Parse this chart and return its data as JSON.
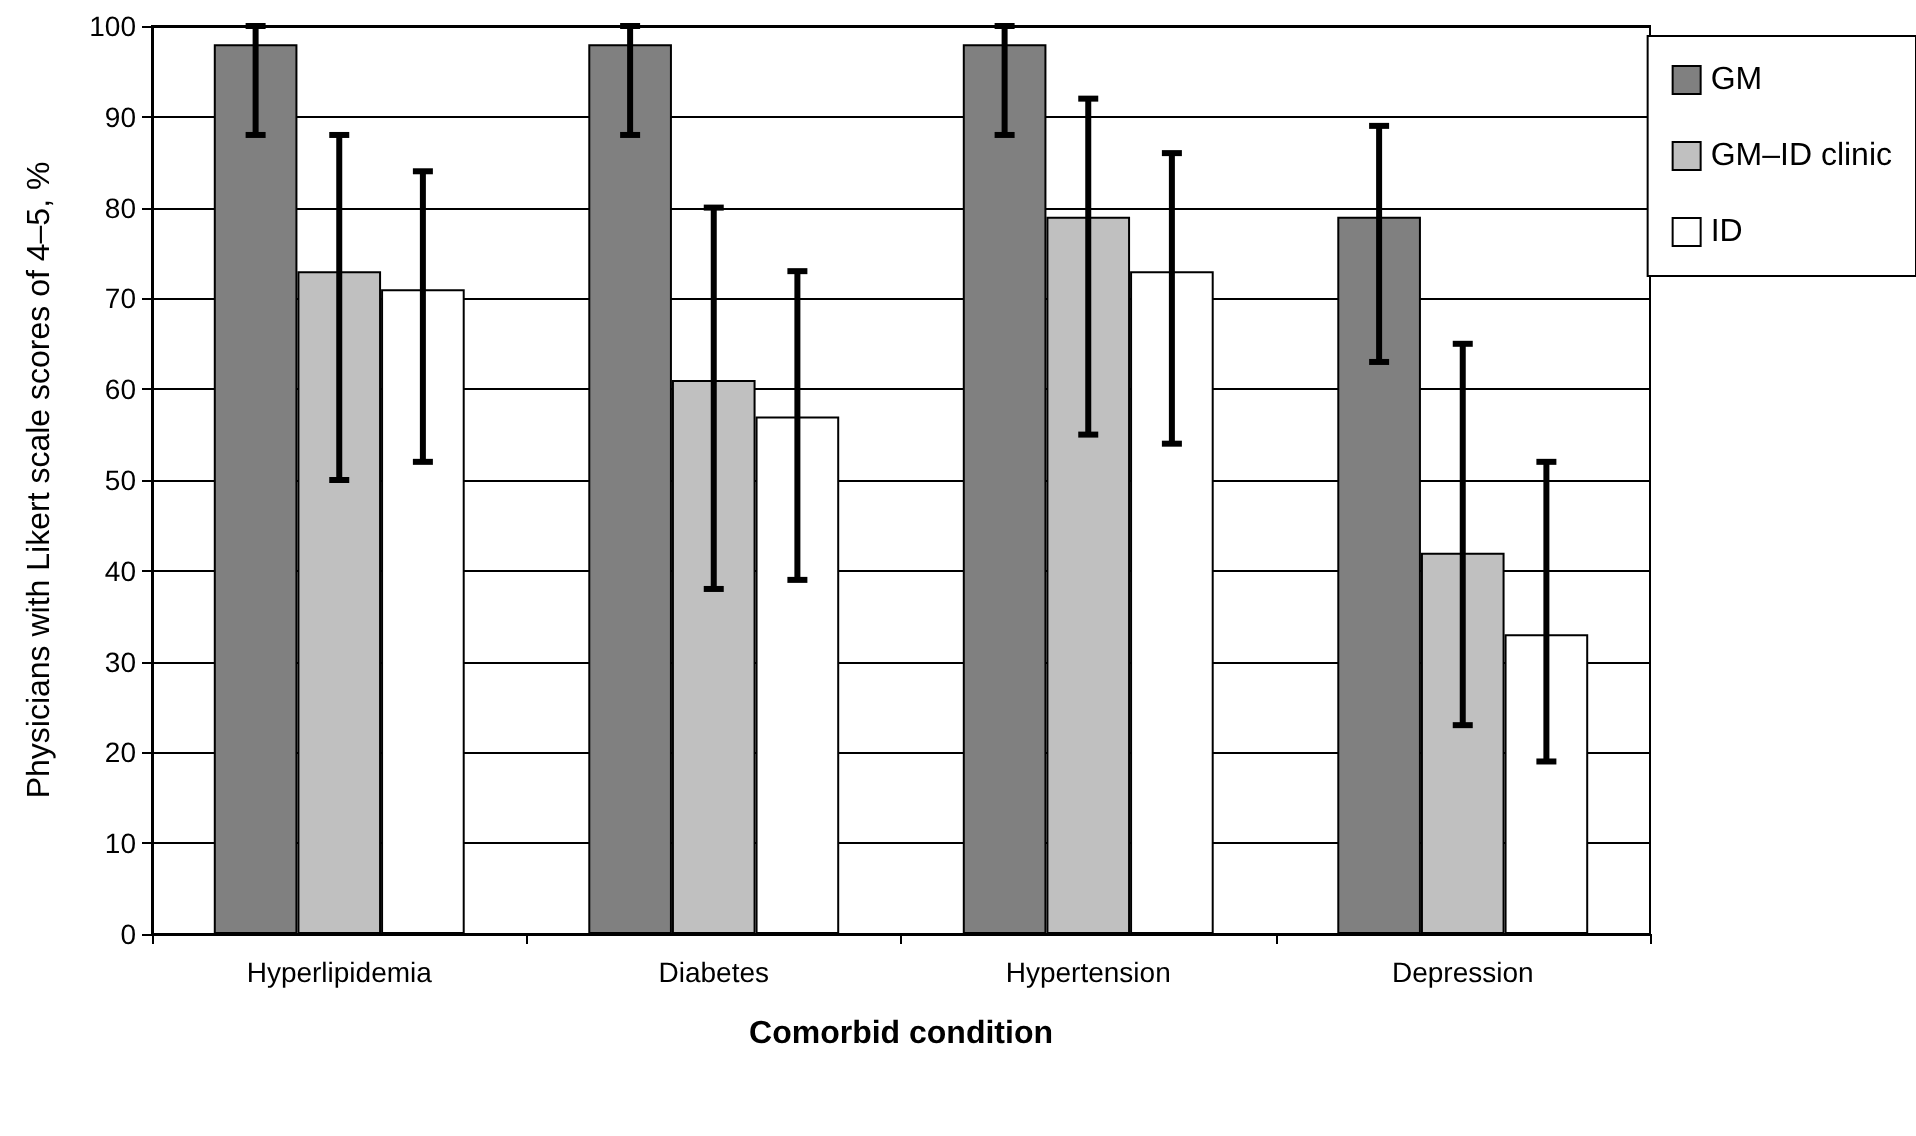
{
  "chart_data": {
    "type": "bar",
    "xlabel": "Comorbid condition",
    "ylabel": "Physicians with Likert scale scores of 4–5, %",
    "categories": [
      "Hyperlipidemia",
      "Diabetes",
      "Hypertension",
      "Depression"
    ],
    "series": [
      {
        "name": "GM",
        "color": "#808080",
        "values": [
          98,
          98,
          98,
          79
        ],
        "errors": [
          [
            88,
            100
          ],
          [
            88,
            100
          ],
          [
            88,
            100
          ],
          [
            63,
            89
          ]
        ]
      },
      {
        "name": "GM–ID clinic",
        "color": "#c0c0c0",
        "values": [
          73,
          61,
          79,
          42
        ],
        "errors": [
          [
            50,
            88
          ],
          [
            38,
            80
          ],
          [
            55,
            92
          ],
          [
            23,
            65
          ]
        ]
      },
      {
        "name": "ID",
        "color": "#ffffff",
        "values": [
          71,
          57,
          73,
          33
        ],
        "errors": [
          [
            52,
            84
          ],
          [
            39,
            73
          ],
          [
            54,
            86
          ],
          [
            19,
            52
          ]
        ]
      }
    ],
    "ylim": [
      0,
      100
    ],
    "yticks": [
      0,
      10,
      20,
      30,
      40,
      50,
      60,
      70,
      80,
      90,
      100
    ],
    "grid": "y",
    "legend": "top right"
  }
}
